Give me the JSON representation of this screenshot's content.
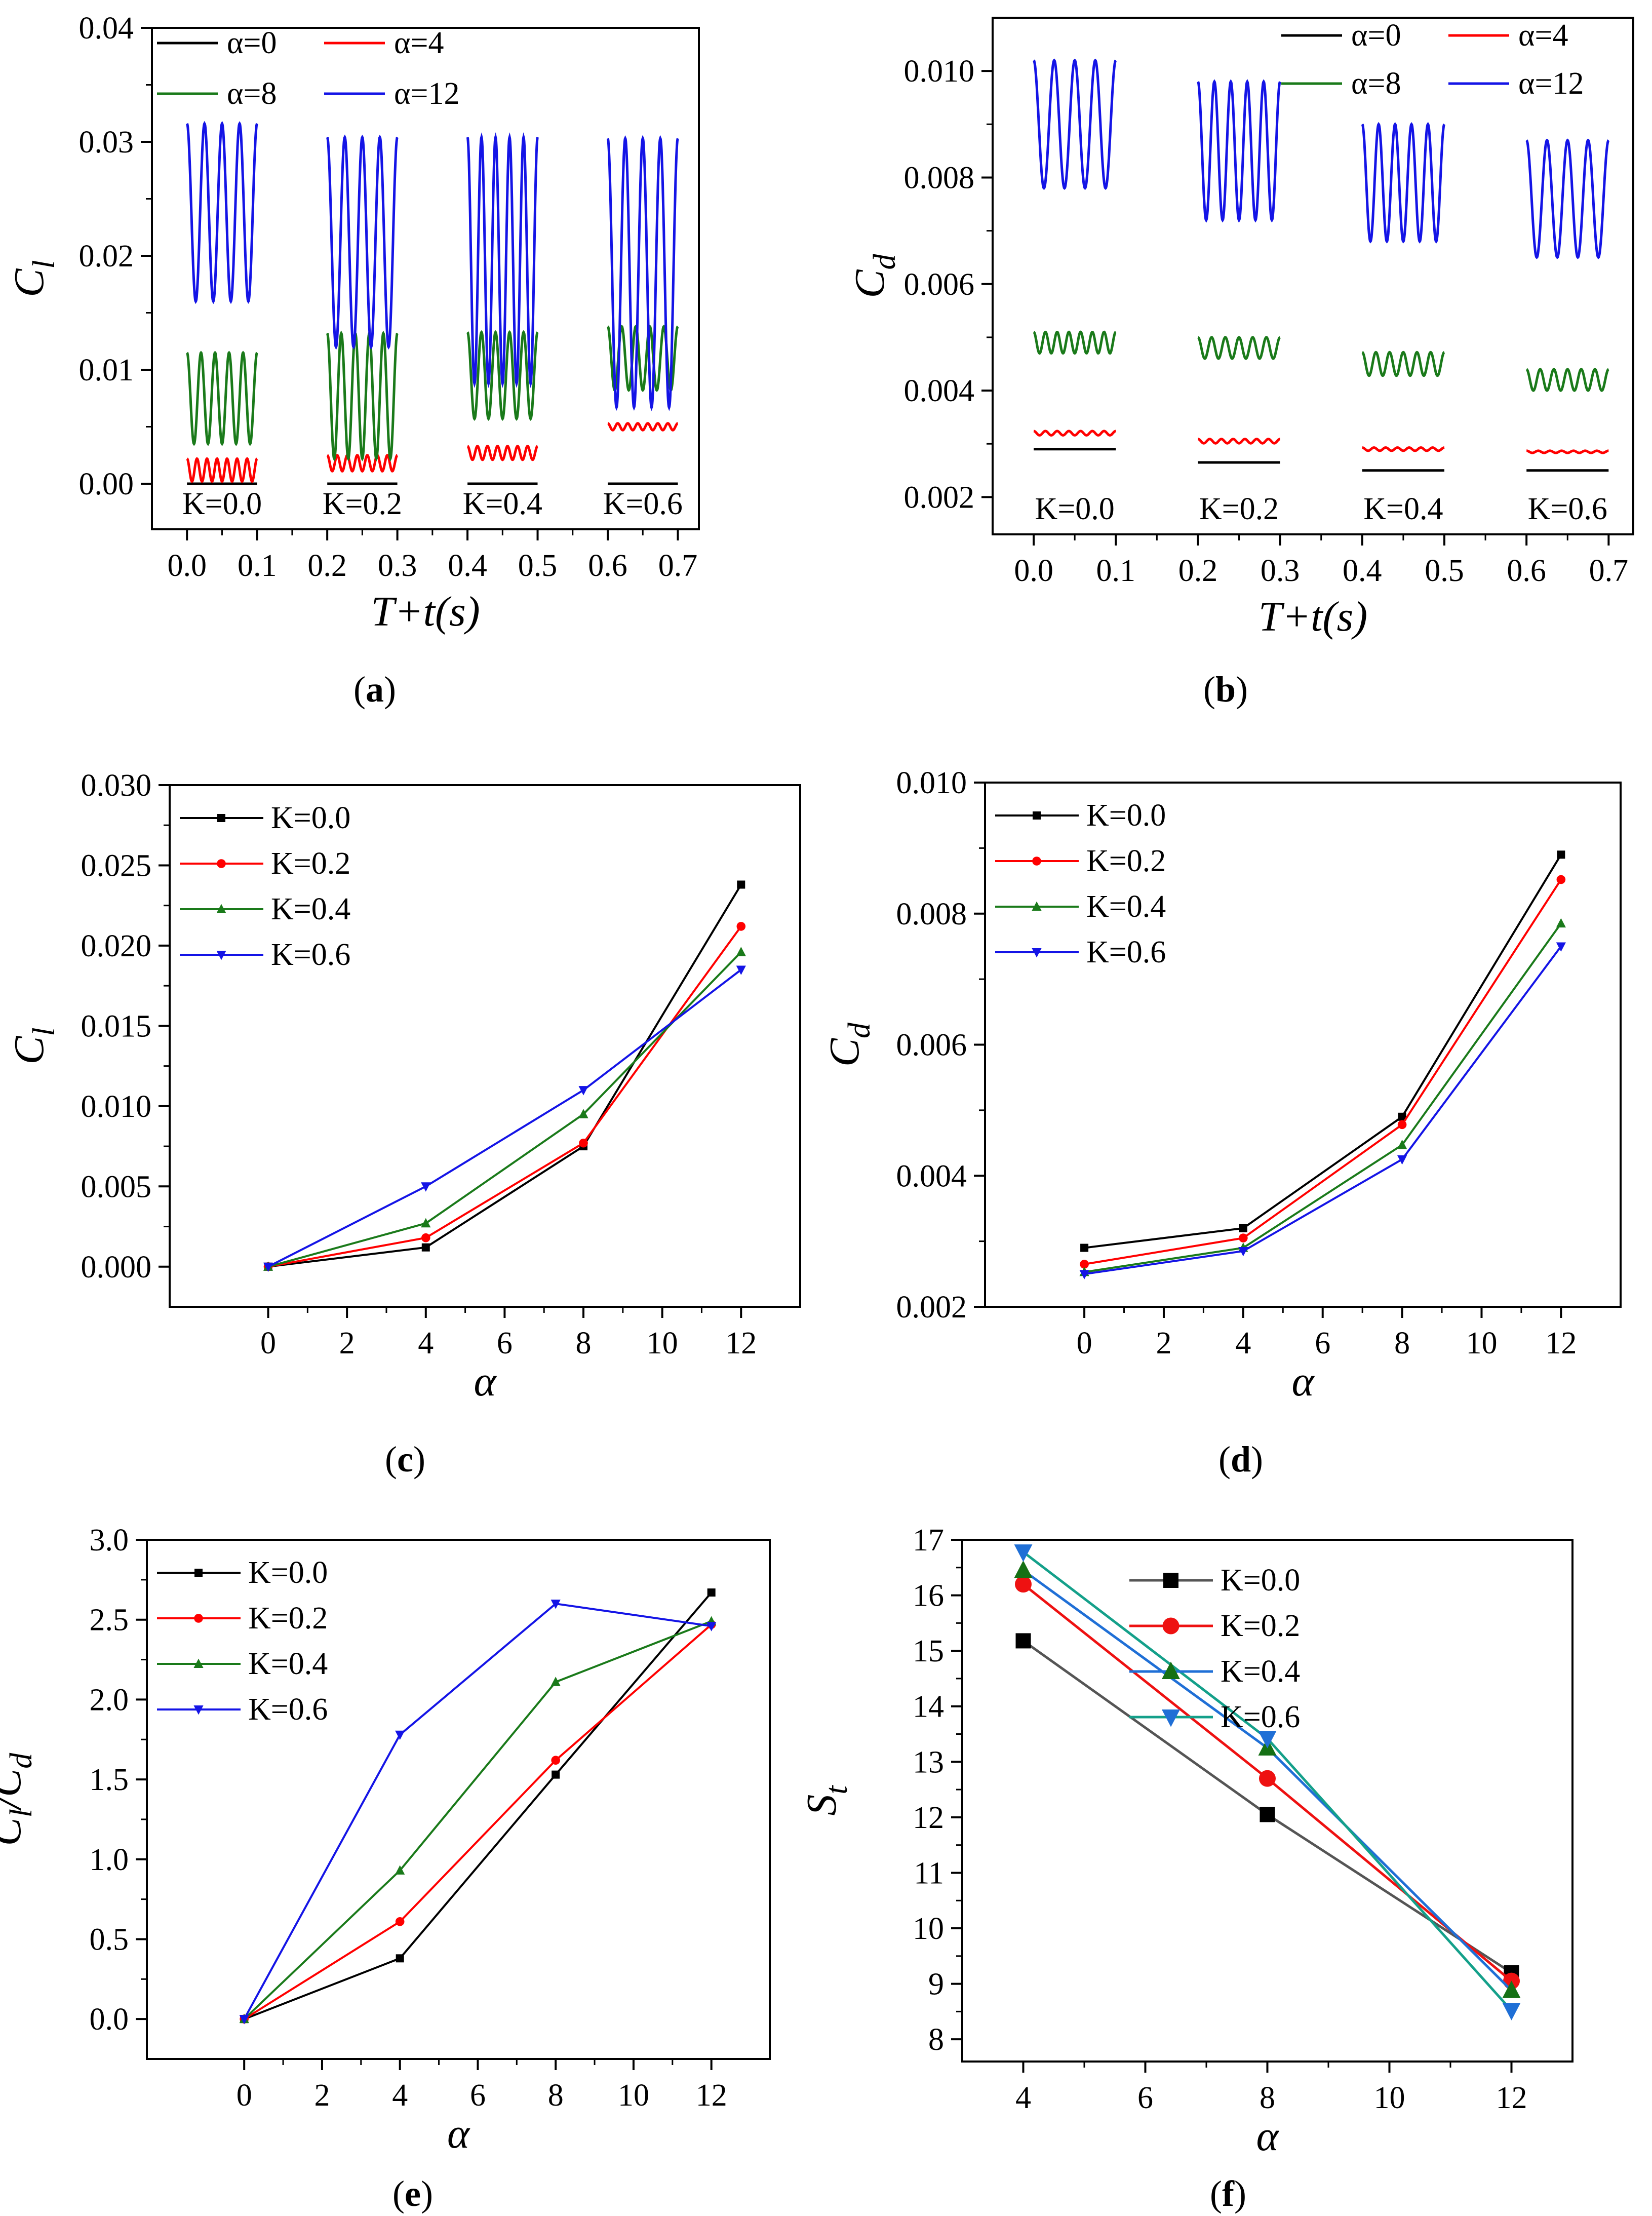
{
  "colors": {
    "black": "#000000",
    "red": "#ff0000",
    "green": "#1a7a1a",
    "blue": "#1414e6",
    "gray": "#555555",
    "f_red": "#ee1111",
    "f_blue": "#1f6fd6",
    "f_green": "#14a08a",
    "f_triangle": "#157015"
  },
  "chart_data": [
    {
      "id": "a",
      "type": "line",
      "caption_letter": "a",
      "ylabel_main": "C",
      "ylabel_sub": "l",
      "xlabel": "T+t(s)",
      "xlim": [
        -0.05,
        0.73
      ],
      "ylim": [
        -0.004,
        0.04
      ],
      "x_ticks": [
        "0.0",
        "0.1",
        "0.2",
        "0.3",
        "0.4",
        "0.5",
        "0.6",
        "0.7"
      ],
      "y_ticks": [
        "0.00",
        "0.01",
        "0.02",
        "0.03",
        "0.04"
      ],
      "legend": [
        "α=0",
        "α=4",
        "α=8",
        "α=12"
      ],
      "segments": [
        {
          "label": "K=0.0",
          "t0": 0.0,
          "t1": 0.1,
          "series": [
            {
              "name": "α=0",
              "color_key": "black",
              "mean": 0.0,
              "amp": 0.0,
              "cycles": 5
            },
            {
              "name": "α=4",
              "color_key": "red",
              "mean": 0.0012,
              "amp": 0.001,
              "cycles": 7
            },
            {
              "name": "α=8",
              "color_key": "green",
              "mean": 0.0075,
              "amp": 0.004,
              "cycles": 5
            },
            {
              "name": "α=12",
              "color_key": "blue",
              "mean": 0.0238,
              "amp": 0.0078,
              "cycles": 4
            }
          ]
        },
        {
          "label": "K=0.2",
          "t0": 0.2,
          "t1": 0.3,
          "series": [
            {
              "name": "α=0",
              "color_key": "black",
              "mean": 0.0,
              "amp": 0.0,
              "cycles": 5
            },
            {
              "name": "α=4",
              "color_key": "red",
              "mean": 0.0018,
              "amp": 0.0007,
              "cycles": 7
            },
            {
              "name": "α=8",
              "color_key": "green",
              "mean": 0.0077,
              "amp": 0.0055,
              "cycles": 5
            },
            {
              "name": "α=12",
              "color_key": "blue",
              "mean": 0.0212,
              "amp": 0.0092,
              "cycles": 4
            }
          ]
        },
        {
          "label": "K=0.4",
          "t0": 0.4,
          "t1": 0.5,
          "series": [
            {
              "name": "α=0",
              "color_key": "black",
              "mean": 0.0,
              "amp": 0.0,
              "cycles": 5
            },
            {
              "name": "α=4",
              "color_key": "red",
              "mean": 0.0027,
              "amp": 0.0006,
              "cycles": 7
            },
            {
              "name": "α=8",
              "color_key": "green",
              "mean": 0.0095,
              "amp": 0.0038,
              "cycles": 5
            },
            {
              "name": "α=12",
              "color_key": "blue",
              "mean": 0.0196,
              "amp": 0.0108,
              "cycles": 5
            }
          ]
        },
        {
          "label": "K=0.6",
          "t0": 0.6,
          "t1": 0.7,
          "series": [
            {
              "name": "α=0",
              "color_key": "black",
              "mean": 0.0,
              "amp": 0.0,
              "cycles": 5
            },
            {
              "name": "α=4",
              "color_key": "red",
              "mean": 0.005,
              "amp": 0.0003,
              "cycles": 7
            },
            {
              "name": "α=8",
              "color_key": "green",
              "mean": 0.011,
              "amp": 0.0028,
              "cycles": 5
            },
            {
              "name": "α=12",
              "color_key": "blue",
              "mean": 0.0185,
              "amp": 0.0118,
              "cycles": 4
            }
          ]
        }
      ]
    },
    {
      "id": "b",
      "type": "line",
      "caption_letter": "b",
      "ylabel_main": "C",
      "ylabel_sub": "d",
      "xlabel": "T+t(s)",
      "xlim": [
        -0.05,
        0.73
      ],
      "ylim": [
        0.0013,
        0.011
      ],
      "x_ticks": [
        "0.0",
        "0.1",
        "0.2",
        "0.3",
        "0.4",
        "0.5",
        "0.6",
        "0.7"
      ],
      "y_ticks": [
        "0.002",
        "0.004",
        "0.006",
        "0.008",
        "0.010"
      ],
      "legend": [
        "α=0",
        "α=4",
        "α=8",
        "α=12"
      ],
      "segments": [
        {
          "label": "K=0.0",
          "t0": 0.0,
          "t1": 0.1,
          "series": [
            {
              "name": "α=0",
              "color_key": "black",
              "mean": 0.0029,
              "amp": 0.0,
              "cycles": 5
            },
            {
              "name": "α=4",
              "color_key": "red",
              "mean": 0.0032,
              "amp": 4e-05,
              "cycles": 7
            },
            {
              "name": "α=8",
              "color_key": "green",
              "mean": 0.0049,
              "amp": 0.0002,
              "cycles": 7
            },
            {
              "name": "α=12",
              "color_key": "blue",
              "mean": 0.009,
              "amp": 0.0012,
              "cycles": 4
            }
          ]
        },
        {
          "label": "K=0.2",
          "t0": 0.2,
          "t1": 0.3,
          "series": [
            {
              "name": "α=0",
              "color_key": "black",
              "mean": 0.00265,
              "amp": 0.0,
              "cycles": 5
            },
            {
              "name": "α=4",
              "color_key": "red",
              "mean": 0.00305,
              "amp": 4e-05,
              "cycles": 7
            },
            {
              "name": "α=8",
              "color_key": "green",
              "mean": 0.0048,
              "amp": 0.0002,
              "cycles": 6
            },
            {
              "name": "α=12",
              "color_key": "blue",
              "mean": 0.0085,
              "amp": 0.0013,
              "cycles": 5
            }
          ]
        },
        {
          "label": "K=0.4",
          "t0": 0.4,
          "t1": 0.5,
          "series": [
            {
              "name": "α=0",
              "color_key": "black",
              "mean": 0.0025,
              "amp": 0.0,
              "cycles": 5
            },
            {
              "name": "α=4",
              "color_key": "red",
              "mean": 0.0029,
              "amp": 3e-05,
              "cycles": 7
            },
            {
              "name": "α=8",
              "color_key": "green",
              "mean": 0.0045,
              "amp": 0.00022,
              "cycles": 6
            },
            {
              "name": "α=12",
              "color_key": "blue",
              "mean": 0.0079,
              "amp": 0.0011,
              "cycles": 5
            }
          ]
        },
        {
          "label": "K=0.6",
          "t0": 0.6,
          "t1": 0.7,
          "series": [
            {
              "name": "α=0",
              "color_key": "black",
              "mean": 0.0025,
              "amp": 0.0,
              "cycles": 5
            },
            {
              "name": "α=4",
              "color_key": "red",
              "mean": 0.00285,
              "amp": 2e-05,
              "cycles": 7
            },
            {
              "name": "α=8",
              "color_key": "green",
              "mean": 0.0042,
              "amp": 0.0002,
              "cycles": 6
            },
            {
              "name": "α=12",
              "color_key": "blue",
              "mean": 0.0076,
              "amp": 0.0011,
              "cycles": 4
            }
          ]
        }
      ]
    },
    {
      "id": "c",
      "type": "line",
      "caption_letter": "c",
      "ylabel_main": "C",
      "ylabel_sub": "l",
      "xlabel": "α",
      "xlim": [
        -2.5,
        13.5
      ],
      "ylim": [
        -0.0025,
        0.03
      ],
      "x_values": [
        0,
        4,
        8,
        12
      ],
      "x_ticks": [
        "0",
        "2",
        "4",
        "6",
        "8",
        "10",
        "12"
      ],
      "y_ticks": [
        "0.000",
        "0.005",
        "0.010",
        "0.015",
        "0.020",
        "0.025",
        "0.030"
      ],
      "series": [
        {
          "name": "K=0.0",
          "color_key": "black",
          "marker": "square",
          "values": [
            0.0,
            0.0012,
            0.0075,
            0.0238
          ]
        },
        {
          "name": "K=0.2",
          "color_key": "red",
          "marker": "circle",
          "values": [
            0.0,
            0.0018,
            0.0077,
            0.0212
          ]
        },
        {
          "name": "K=0.4",
          "color_key": "green",
          "marker": "triangle-up",
          "values": [
            0.0,
            0.0027,
            0.0095,
            0.0196
          ]
        },
        {
          "name": "K=0.6",
          "color_key": "blue",
          "marker": "triangle-down",
          "values": [
            0.0,
            0.005,
            0.011,
            0.0185
          ]
        }
      ]
    },
    {
      "id": "d",
      "type": "line",
      "caption_letter": "d",
      "ylabel_main": "C",
      "ylabel_sub": "d",
      "xlabel": "α",
      "xlim": [
        -2.5,
        13.5
      ],
      "ylim": [
        0.002,
        0.01
      ],
      "x_values": [
        0,
        4,
        8,
        12
      ],
      "x_ticks": [
        "0",
        "2",
        "4",
        "6",
        "8",
        "10",
        "12"
      ],
      "y_ticks": [
        "0.002",
        "0.004",
        "0.006",
        "0.008",
        "0.010"
      ],
      "series": [
        {
          "name": "K=0.0",
          "color_key": "black",
          "marker": "square",
          "values": [
            0.0029,
            0.0032,
            0.0049,
            0.0089
          ]
        },
        {
          "name": "K=0.2",
          "color_key": "red",
          "marker": "circle",
          "values": [
            0.00265,
            0.00305,
            0.00478,
            0.00852
          ]
        },
        {
          "name": "K=0.4",
          "color_key": "green",
          "marker": "triangle-up",
          "values": [
            0.00253,
            0.0029,
            0.00447,
            0.00785
          ]
        },
        {
          "name": "K=0.6",
          "color_key": "blue",
          "marker": "triangle-down",
          "values": [
            0.0025,
            0.00285,
            0.00425,
            0.0075
          ]
        }
      ]
    },
    {
      "id": "e",
      "type": "line",
      "caption_letter": "e",
      "ylabel_main": "C",
      "ylabel_sub": "l",
      "ylabel_main2": "C",
      "ylabel_sub2": "d",
      "xlabel": "α",
      "xlim": [
        -2.5,
        13.5
      ],
      "ylim": [
        -0.25,
        3.0
      ],
      "x_values": [
        0,
        4,
        8,
        12
      ],
      "x_ticks": [
        "0",
        "2",
        "4",
        "6",
        "8",
        "10",
        "12"
      ],
      "y_ticks": [
        "0.0",
        "0.5",
        "1.0",
        "1.5",
        "2.0",
        "2.5",
        "3.0"
      ],
      "series": [
        {
          "name": "K=0.0",
          "color_key": "black",
          "marker": "square",
          "values": [
            0.0,
            0.38,
            1.53,
            2.67
          ]
        },
        {
          "name": "K=0.2",
          "color_key": "red",
          "marker": "circle",
          "values": [
            0.0,
            0.61,
            1.62,
            2.47
          ]
        },
        {
          "name": "K=0.4",
          "color_key": "green",
          "marker": "triangle-up",
          "values": [
            0.0,
            0.93,
            2.11,
            2.49
          ]
        },
        {
          "name": "K=0.6",
          "color_key": "blue",
          "marker": "triangle-down",
          "values": [
            0.0,
            1.78,
            2.6,
            2.46
          ]
        }
      ]
    },
    {
      "id": "f",
      "type": "line",
      "caption_letter": "f",
      "ylabel_main": "S",
      "ylabel_sub": "t",
      "xlabel": "α",
      "xlim": [
        3.0,
        13.0
      ],
      "ylim": [
        7.6,
        17.0
      ],
      "x_values": [
        4,
        8,
        12
      ],
      "x_ticks": [
        "4",
        "6",
        "8",
        "10",
        "12"
      ],
      "y_ticks": [
        "8",
        "9",
        "10",
        "11",
        "12",
        "13",
        "14",
        "15",
        "16",
        "17"
      ],
      "series": [
        {
          "name": "K=0.0",
          "color_key": "gray",
          "marker_color_key": "black",
          "marker": "square",
          "values": [
            15.18,
            12.05,
            9.2
          ]
        },
        {
          "name": "K=0.2",
          "color_key": "f_red",
          "marker_color_key": "f_red",
          "marker": "circle",
          "values": [
            16.2,
            12.7,
            9.05
          ]
        },
        {
          "name": "K=0.4",
          "color_key": "f_blue",
          "marker_color_key": "f_triangle",
          "marker": "triangle-up",
          "values": [
            16.45,
            13.25,
            8.88
          ]
        },
        {
          "name": "K=0.6",
          "color_key": "f_green",
          "marker_color_key": "f_blue",
          "marker": "triangle-down",
          "values": [
            16.78,
            13.42,
            8.52
          ]
        }
      ]
    }
  ]
}
